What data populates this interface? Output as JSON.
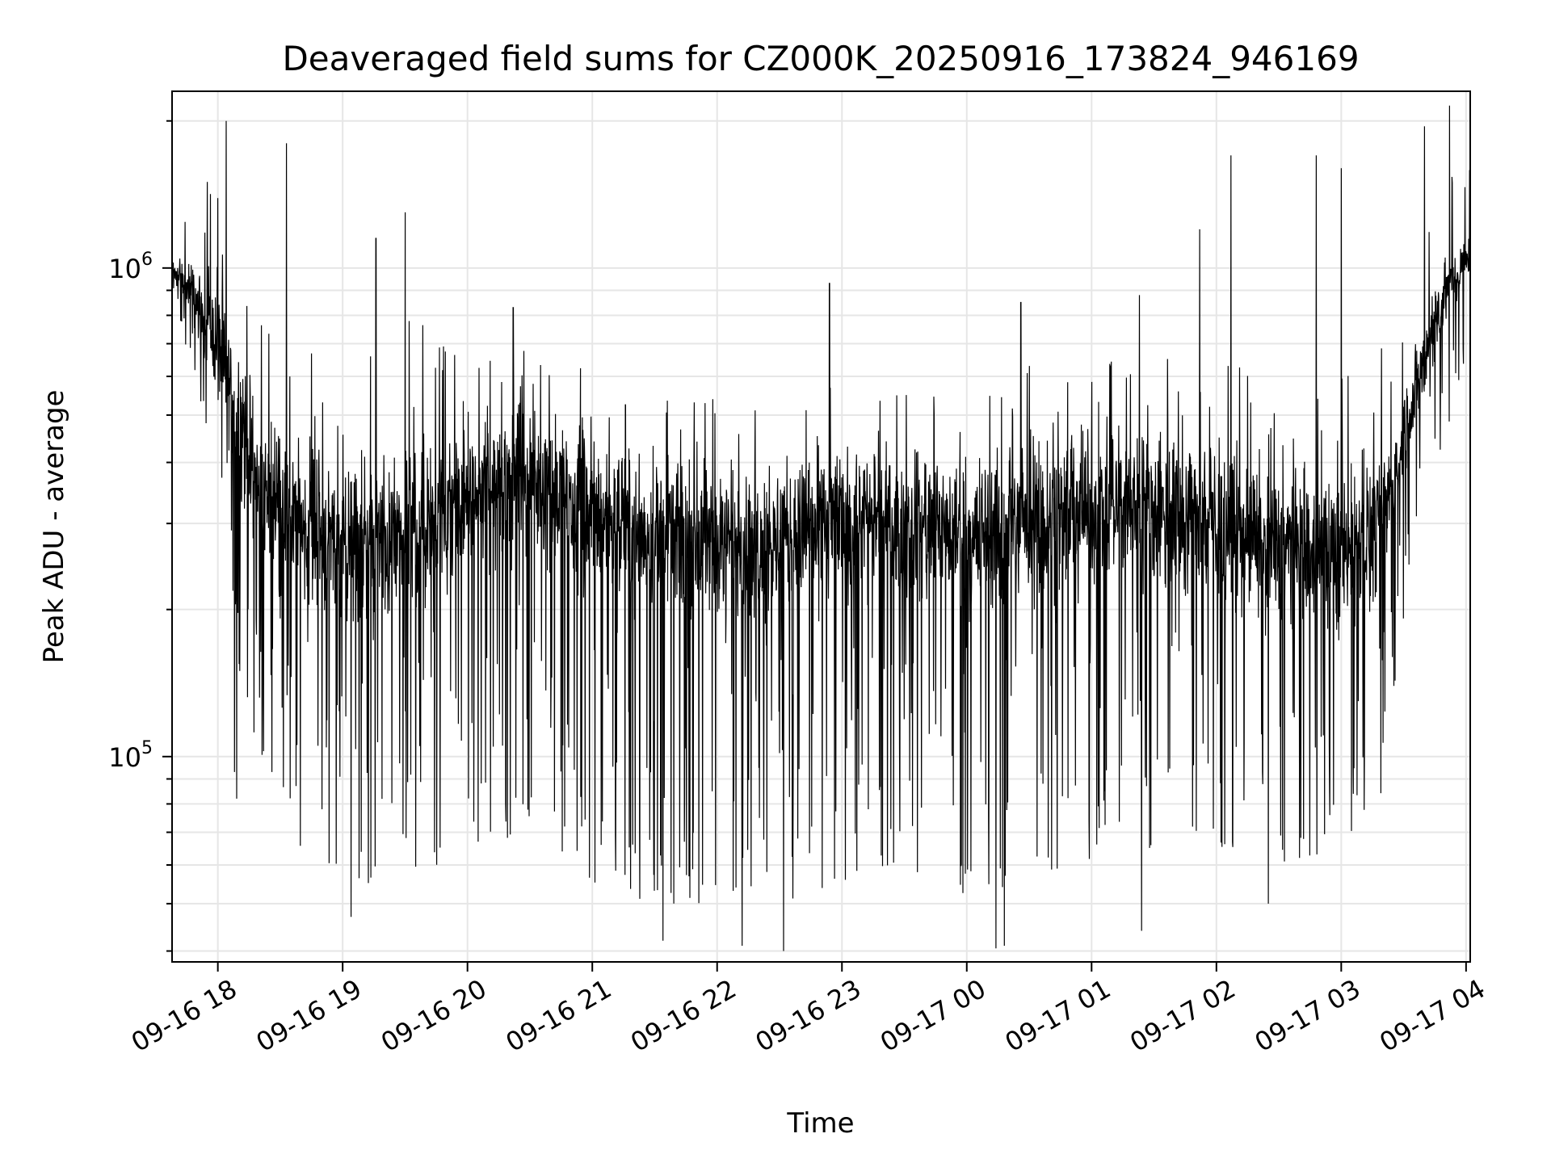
{
  "chart_data": {
    "type": "line",
    "title": "Deaveraged field sums for CZ000K_20250916_173824_946169",
    "xlabel": "Time",
    "ylabel": "Peak ADU - average",
    "x_range": [
      "2025-09-16 17:38",
      "2025-09-17 04:02"
    ],
    "x_ticks": [
      {
        "time": "2025-09-16 18:00",
        "label": "09-16 18"
      },
      {
        "time": "2025-09-16 19:00",
        "label": "09-16 19"
      },
      {
        "time": "2025-09-16 20:00",
        "label": "09-16 20"
      },
      {
        "time": "2025-09-16 21:00",
        "label": "09-16 21"
      },
      {
        "time": "2025-09-16 22:00",
        "label": "09-16 22"
      },
      {
        "time": "2025-09-16 23:00",
        "label": "09-16 23"
      },
      {
        "time": "2025-09-17 00:00",
        "label": "09-17 00"
      },
      {
        "time": "2025-09-17 01:00",
        "label": "09-17 01"
      },
      {
        "time": "2025-09-17 02:00",
        "label": "09-17 02"
      },
      {
        "time": "2025-09-17 03:00",
        "label": "09-17 03"
      },
      {
        "time": "2025-09-17 04:00",
        "label": "09-17 04"
      }
    ],
    "y_scale": "log",
    "ylim": [
      38000,
      2300000
    ],
    "y_ticks": [
      {
        "value": 100000,
        "base": "10",
        "exp": "5"
      },
      {
        "value": 1000000,
        "base": "10",
        "exp": "6"
      }
    ],
    "grid": true,
    "line_color": "#000000",
    "envelope": [
      {
        "time": "2025-09-16 17:38",
        "median": 1000000,
        "low": 900000,
        "high": 1100000
      },
      {
        "time": "2025-09-16 17:50",
        "median": 850000,
        "low": 550000,
        "high": 1600000
      },
      {
        "time": "2025-09-16 18:00",
        "median": 700000,
        "low": 400000,
        "high": 1900000
      },
      {
        "time": "2025-09-16 18:10",
        "median": 500000,
        "low": 150000,
        "high": 1500000
      },
      {
        "time": "2025-09-16 18:20",
        "median": 350000,
        "low": 100000,
        "high": 1000000
      },
      {
        "time": "2025-09-16 18:40",
        "median": 300000,
        "low": 65000,
        "high": 700000
      },
      {
        "time": "2025-09-16 19:00",
        "median": 270000,
        "low": 55000,
        "high": 600000
      },
      {
        "time": "2025-09-16 19:30",
        "median": 280000,
        "low": 55000,
        "high": 800000
      },
      {
        "time": "2025-09-16 20:00",
        "median": 330000,
        "low": 65000,
        "high": 700000
      },
      {
        "time": "2025-09-16 20:30",
        "median": 380000,
        "low": 70000,
        "high": 750000
      },
      {
        "time": "2025-09-16 21:00",
        "median": 320000,
        "low": 55000,
        "high": 600000
      },
      {
        "time": "2025-09-16 21:30",
        "median": 280000,
        "low": 50000,
        "high": 550000
      },
      {
        "time": "2025-09-16 22:00",
        "median": 270000,
        "low": 50000,
        "high": 550000
      },
      {
        "time": "2025-09-16 22:30",
        "median": 280000,
        "low": 50000,
        "high": 550000
      },
      {
        "time": "2025-09-16 23:00",
        "median": 300000,
        "low": 55000,
        "high": 600000
      },
      {
        "time": "2025-09-16 23:30",
        "median": 300000,
        "low": 55000,
        "high": 600000
      },
      {
        "time": "2025-09-17 00:00",
        "median": 280000,
        "low": 52000,
        "high": 600000
      },
      {
        "time": "2025-09-17 00:30",
        "median": 300000,
        "low": 55000,
        "high": 650000
      },
      {
        "time": "2025-09-17 01:00",
        "median": 320000,
        "low": 60000,
        "high": 650000
      },
      {
        "time": "2025-09-17 01:30",
        "median": 330000,
        "low": 65000,
        "high": 700000
      },
      {
        "time": "2025-09-17 02:00",
        "median": 300000,
        "low": 65000,
        "high": 650000
      },
      {
        "time": "2025-09-17 02:30",
        "median": 270000,
        "low": 60000,
        "high": 600000
      },
      {
        "time": "2025-09-17 03:00",
        "median": 260000,
        "low": 65000,
        "high": 600000
      },
      {
        "time": "2025-09-17 03:20",
        "median": 300000,
        "low": 80000,
        "high": 700000
      },
      {
        "time": "2025-09-17 03:35",
        "median": 550000,
        "low": 300000,
        "high": 1300000
      },
      {
        "time": "2025-09-17 03:50",
        "median": 900000,
        "low": 450000,
        "high": 1700000
      },
      {
        "time": "2025-09-17 04:02",
        "median": 1050000,
        "low": 700000,
        "high": 1600000
      }
    ],
    "spikes": [
      {
        "time": "2025-09-16 18:04",
        "value": 2000000
      },
      {
        "time": "2025-09-16 17:55",
        "value": 1500000
      },
      {
        "time": "2025-09-16 18:33",
        "value": 1800000
      },
      {
        "time": "2025-09-16 19:16",
        "value": 1150000
      },
      {
        "time": "2025-09-16 19:30",
        "value": 1300000
      },
      {
        "time": "2025-09-16 20:22",
        "value": 830000
      },
      {
        "time": "2025-09-16 22:54",
        "value": 930000
      },
      {
        "time": "2025-09-17 00:26",
        "value": 850000
      },
      {
        "time": "2025-09-17 01:23",
        "value": 880000
      },
      {
        "time": "2025-09-17 01:52",
        "value": 1200000
      },
      {
        "time": "2025-09-17 02:07",
        "value": 1700000
      },
      {
        "time": "2025-09-17 02:48",
        "value": 1700000
      },
      {
        "time": "2025-09-17 03:00",
        "value": 1600000
      },
      {
        "time": "2025-09-17 03:40",
        "value": 1950000
      },
      {
        "time": "2025-09-17 03:52",
        "value": 2150000
      },
      {
        "time": "2025-09-16 18:08",
        "value": 93000
      },
      {
        "time": "2025-09-16 18:09",
        "value": 82000
      },
      {
        "time": "2025-09-16 19:04",
        "value": 47000
      },
      {
        "time": "2025-09-16 21:34",
        "value": 42000
      },
      {
        "time": "2025-09-16 22:12",
        "value": 41000
      },
      {
        "time": "2025-09-16 22:32",
        "value": 40000
      },
      {
        "time": "2025-09-17 00:14",
        "value": 40500
      },
      {
        "time": "2025-09-17 00:18",
        "value": 41000
      },
      {
        "time": "2025-09-17 01:24",
        "value": 44000
      },
      {
        "time": "2025-09-17 02:25",
        "value": 50000
      },
      {
        "time": "2025-09-17 01:49",
        "value": 96000
      }
    ]
  }
}
